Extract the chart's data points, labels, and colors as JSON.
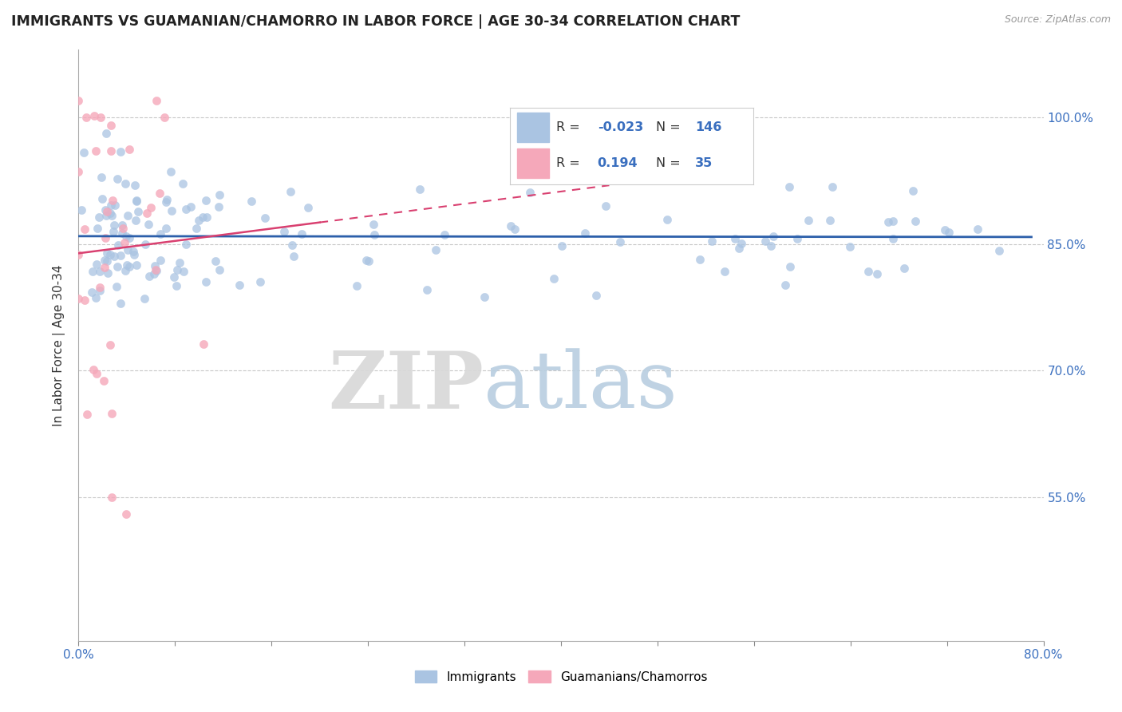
{
  "title": "IMMIGRANTS VS GUAMANIAN/CHAMORRO IN LABOR FORCE | AGE 30-34 CORRELATION CHART",
  "source_text": "Source: ZipAtlas.com",
  "ylabel": "In Labor Force | Age 30-34",
  "ytick_labels": [
    "55.0%",
    "70.0%",
    "85.0%",
    "100.0%"
  ],
  "ytick_values": [
    0.55,
    0.7,
    0.85,
    1.0
  ],
  "xlim": [
    0.0,
    0.8
  ],
  "ylim": [
    0.38,
    1.08
  ],
  "blue_color": "#aac4e2",
  "pink_color": "#f5a8ba",
  "blue_line_color": "#2c5faa",
  "pink_line_color": "#d94070",
  "legend_box_color": "#f0f4f8",
  "watermark_zip_color": "#d8d8d8",
  "watermark_atlas_color": "#b8cee0",
  "seed": 12345,
  "N_blue": 146,
  "N_pink": 35
}
